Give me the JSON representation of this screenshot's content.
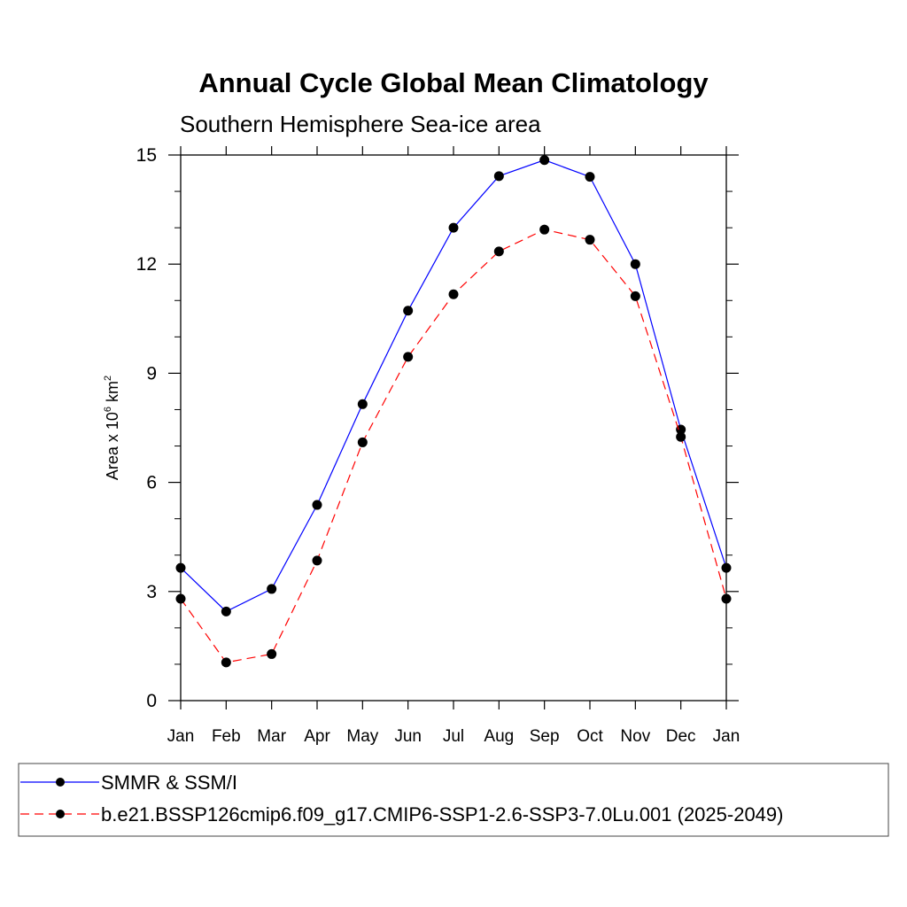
{
  "chart_data": {
    "type": "line",
    "title": "Annual Cycle Global Mean Climatology",
    "subtitle": "Southern Hemisphere Sea-ice area",
    "ylabel": {
      "base": "Area x 10",
      "exp1": "6",
      "mid": " km",
      "exp2": "2"
    },
    "categories": [
      "Jan",
      "Feb",
      "Mar",
      "Apr",
      "May",
      "Jun",
      "Jul",
      "Aug",
      "Sep",
      "Oct",
      "Nov",
      "Dec",
      "Jan"
    ],
    "ylim": [
      0,
      15
    ],
    "yticks": [
      "0",
      "3",
      "6",
      "9",
      "12",
      "15"
    ],
    "grid": false,
    "legend_position": "bottom",
    "series": [
      {
        "name": "SMMR & SSM/I",
        "color": "#0000ff",
        "dash": "solid",
        "values": [
          3.65,
          2.45,
          3.07,
          5.38,
          8.15,
          10.72,
          13.0,
          14.42,
          14.86,
          14.4,
          12.0,
          7.45,
          3.65
        ]
      },
      {
        "name": "b.e21.BSSP126cmip6.f09_g17.CMIP6-SSP1-2.6-SSP3-7.0Lu.001 (2025-2049)",
        "color": "#ff0000",
        "dash": "dashed",
        "values": [
          2.8,
          1.05,
          1.28,
          3.85,
          7.1,
          9.45,
          11.17,
          12.35,
          12.95,
          12.67,
          11.12,
          7.25,
          2.8
        ]
      }
    ]
  }
}
